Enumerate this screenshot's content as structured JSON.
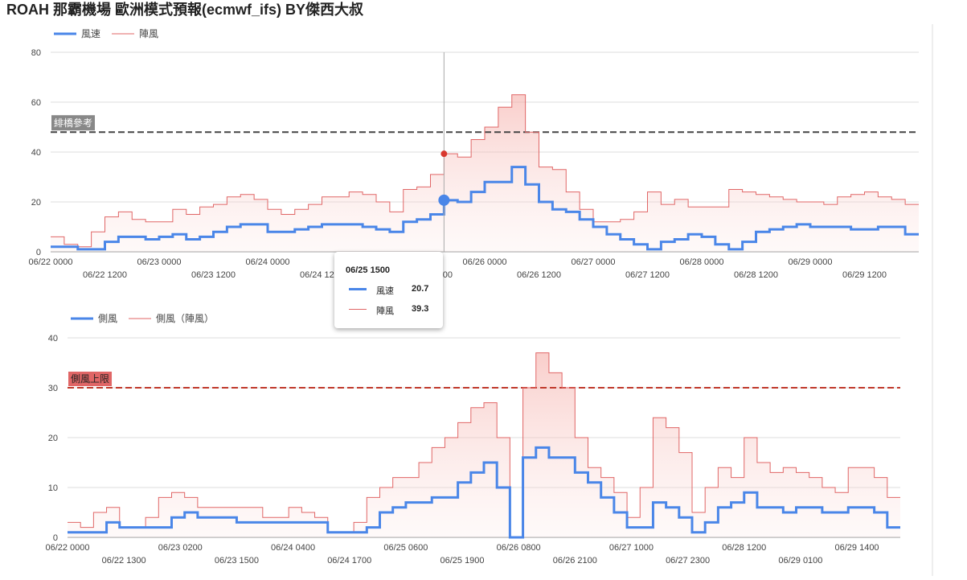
{
  "title": "ROAH 那霸機場 歐洲模式預報(ecmwf_ifs) BY傑西大叔",
  "chart_data": [
    {
      "type": "step-line",
      "xlim": [
        "06/22 0000",
        "06/30 0000"
      ],
      "ylim": [
        0,
        80
      ],
      "yticks": [
        0,
        20,
        40,
        60,
        80
      ],
      "grid": true,
      "x": [
        "06/22 0000",
        "06/22 0300",
        "06/22 0600",
        "06/22 0900",
        "06/22 1200",
        "06/22 1500",
        "06/22 1800",
        "06/22 2100",
        "06/23 0000",
        "06/23 0300",
        "06/23 0600",
        "06/23 0900",
        "06/23 1200",
        "06/23 1500",
        "06/23 1800",
        "06/23 2100",
        "06/24 0000",
        "06/24 0300",
        "06/24 0600",
        "06/24 0900",
        "06/24 1200",
        "06/24 1500",
        "06/24 1800",
        "06/24 2100",
        "06/25 0000",
        "06/25 0300",
        "06/25 0600",
        "06/25 0900",
        "06/25 1200",
        "06/25 1500",
        "06/25 1800",
        "06/25 2100",
        "06/26 0000",
        "06/26 0300",
        "06/26 0600",
        "06/26 0900",
        "06/26 1200",
        "06/26 1500",
        "06/26 1800",
        "06/26 2100",
        "06/27 0000",
        "06/27 0300",
        "06/27 0600",
        "06/27 0900",
        "06/27 1200",
        "06/27 1500",
        "06/27 1800",
        "06/27 2100",
        "06/28 0000",
        "06/28 0300",
        "06/28 0600",
        "06/28 0900",
        "06/28 1200",
        "06/28 1500",
        "06/28 1800",
        "06/28 2100",
        "06/29 0000",
        "06/29 0300",
        "06/29 0600",
        "06/29 0900",
        "06/29 1200",
        "06/29 1500",
        "06/29 1800",
        "06/29 2100"
      ],
      "xticks": [
        "06/22 0000",
        "06/22 1200",
        "06/23 0000",
        "06/23 1200",
        "06/24 0000",
        "06/24 1200",
        "06/25 0000",
        "06/25 1200",
        "06/26 0000",
        "06/26 1200",
        "06/27 0000",
        "06/27 1200",
        "06/28 0000",
        "06/28 1200",
        "06/29 0000",
        "06/29 1200"
      ],
      "series": [
        {
          "name": "風速",
          "color": "#4a86e8",
          "values": [
            2,
            2,
            1,
            1,
            4,
            6,
            6,
            5,
            6,
            7,
            5,
            6,
            8,
            10,
            11,
            11,
            8,
            8,
            9,
            10,
            11,
            11,
            11,
            10,
            9,
            8,
            12,
            13,
            15,
            20.7,
            20,
            24,
            28,
            28,
            34,
            27,
            20,
            17,
            16,
            13,
            10,
            7,
            5,
            3,
            1,
            4,
            5,
            7,
            6,
            3,
            1,
            4,
            8,
            9,
            10,
            11,
            10,
            10,
            10,
            9,
            9,
            10,
            10,
            7
          ]
        },
        {
          "name": "陣風",
          "color": "#e06666",
          "values": [
            6,
            3,
            2,
            8,
            14,
            16,
            13,
            12,
            12,
            17,
            15,
            18,
            19,
            22,
            23,
            21,
            17,
            15,
            17,
            19,
            22,
            22,
            24,
            23,
            20,
            16,
            25,
            26,
            31,
            39.3,
            38,
            45,
            50,
            58,
            63,
            48,
            34,
            33,
            24,
            17,
            12,
            12,
            13,
            16,
            24,
            19,
            21,
            18,
            18,
            18,
            25,
            24,
            23,
            22,
            21,
            20,
            20,
            19,
            22,
            23,
            24,
            22,
            21,
            19
          ]
        }
      ],
      "reference_line": {
        "value": 48,
        "label": "緋橋參考"
      }
    },
    {
      "type": "step-line",
      "xlim": [
        "06/22 0000",
        "06/30 0000"
      ],
      "ylim": [
        0,
        40
      ],
      "yticks": [
        0,
        10,
        20,
        30,
        40
      ],
      "grid": true,
      "x": [
        "06/22 0000",
        "06/22 0300",
        "06/22 0600",
        "06/22 0900",
        "06/22 1200",
        "06/22 1500",
        "06/22 1800",
        "06/22 2100",
        "06/23 0000",
        "06/23 0300",
        "06/23 0600",
        "06/23 0900",
        "06/23 1200",
        "06/23 1500",
        "06/23 1800",
        "06/23 2100",
        "06/24 0000",
        "06/24 0300",
        "06/24 0600",
        "06/24 0900",
        "06/24 1200",
        "06/24 1500",
        "06/24 1800",
        "06/24 2100",
        "06/25 0000",
        "06/25 0300",
        "06/25 0600",
        "06/25 0900",
        "06/25 1200",
        "06/25 1500",
        "06/25 1800",
        "06/25 2100",
        "06/26 0000",
        "06/26 0300",
        "06/26 0600",
        "06/26 0900",
        "06/26 1200",
        "06/26 1500",
        "06/26 1800",
        "06/26 2100",
        "06/27 0000",
        "06/27 0300",
        "06/27 0600",
        "06/27 0900",
        "06/27 1200",
        "06/27 1500",
        "06/27 1800",
        "06/27 2100",
        "06/28 0000",
        "06/28 0300",
        "06/28 0600",
        "06/28 0900",
        "06/28 1200",
        "06/28 1500",
        "06/28 1800",
        "06/28 2100",
        "06/29 0000",
        "06/29 0300",
        "06/29 0600",
        "06/29 0900",
        "06/29 1200",
        "06/29 1500",
        "06/29 1800",
        "06/29 2100"
      ],
      "xticks": [
        "06/22 0000",
        "06/22 1300",
        "06/23 0200",
        "06/23 1500",
        "06/24 0400",
        "06/24 1700",
        "06/25 0600",
        "06/25 1900",
        "06/26 0800",
        "06/26 2100",
        "06/27 1000",
        "06/27 2300",
        "06/28 1200",
        "06/29 0100",
        "06/29 1400"
      ],
      "series": [
        {
          "name": "側風",
          "color": "#4a86e8",
          "values": [
            1,
            1,
            1,
            3,
            2,
            2,
            2,
            2,
            4,
            5,
            4,
            4,
            4,
            3,
            3,
            3,
            3,
            3,
            3,
            3,
            1,
            1,
            1,
            2,
            5,
            6,
            7,
            7,
            8,
            8,
            11,
            13,
            15,
            10,
            0,
            16,
            18,
            16,
            16,
            13,
            11,
            8,
            5,
            2,
            2,
            7,
            6,
            4,
            1,
            3,
            6,
            7,
            9,
            6,
            6,
            5,
            6,
            6,
            5,
            5,
            6,
            6,
            5,
            2
          ]
        },
        {
          "name": "側風（陣風）",
          "color": "#e06666",
          "values": [
            3,
            2,
            5,
            6,
            2,
            2,
            4,
            8,
            9,
            8,
            6,
            6,
            6,
            6,
            6,
            4,
            4,
            6,
            5,
            4,
            1,
            1,
            3,
            8,
            10,
            12,
            12,
            15,
            18,
            20,
            23,
            26,
            27,
            20,
            0,
            30,
            37,
            33,
            30,
            20,
            14,
            12,
            9,
            4,
            10,
            24,
            22,
            17,
            5,
            10,
            14,
            12,
            20,
            15,
            13,
            14,
            13,
            12,
            10,
            9,
            14,
            14,
            12,
            8
          ]
        }
      ],
      "reference_line": {
        "value": 30,
        "label": "側風上限"
      }
    }
  ]
}
